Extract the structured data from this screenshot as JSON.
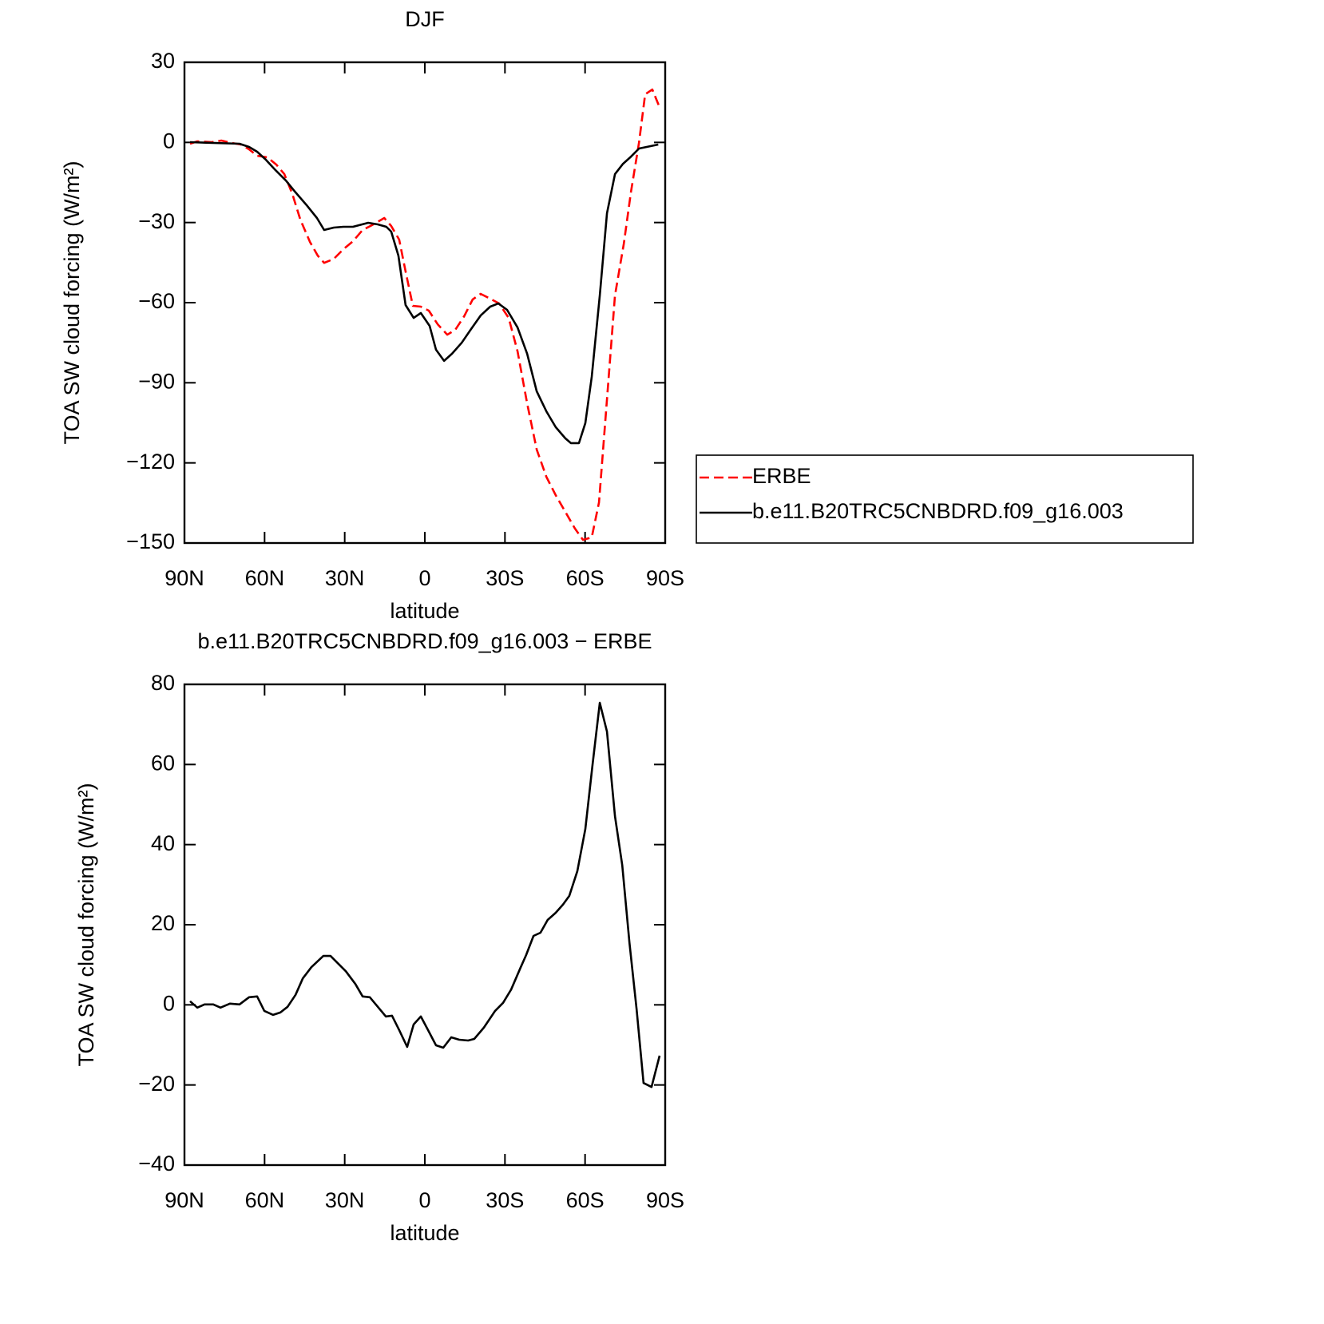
{
  "chart_data": [
    {
      "type": "line",
      "title": "DJF",
      "xlabel": "latitude",
      "ylabel": "TOA SW cloud forcing (W/m²)",
      "xlim": [
        90,
        -90
      ],
      "ylim": [
        -150,
        30
      ],
      "xticks": [
        {
          "value": 90,
          "label": "90N"
        },
        {
          "value": 60,
          "label": "60N"
        },
        {
          "value": 30,
          "label": "30N"
        },
        0,
        {
          "value": -30,
          "label": "30S"
        },
        {
          "value": -60,
          "label": "60S"
        },
        {
          "value": -90,
          "label": "90S"
        }
      ],
      "yticks": [
        30,
        0,
        {
          "value": -30,
          "label": "−30"
        },
        {
          "value": -60,
          "label": "−60"
        },
        {
          "value": -90,
          "label": "−90"
        },
        {
          "value": -120,
          "label": "−120"
        },
        {
          "value": -150,
          "label": "−150"
        }
      ],
      "legend": "right",
      "series": [
        {
          "name": "ERBE",
          "color": "#ff0000",
          "linestyle": "dashed",
          "x": [
            87.9,
            85.2,
            79.8,
            76.2,
            72.4,
            68.8,
            65.8,
            62.8,
            58.9,
            55.6,
            52.6,
            49.6,
            46.6,
            43.0,
            40.1,
            37.7,
            34.1,
            30.5,
            26.9,
            23.3,
            19.8,
            15.2,
            12.6,
            9.6,
            7.2,
            4.5,
            1.5,
            -1.5,
            -4.8,
            -8.4,
            -11.4,
            -14.7,
            -17.9,
            -20.9,
            -23.9,
            -27.8,
            -31.4,
            -34.7,
            -38.3,
            -41.9,
            -45.5,
            -49.0,
            -52.6,
            -56.2,
            -59.2,
            -62.5,
            -65.2,
            -68.2,
            -71.2,
            -74.5,
            -77.2,
            -80.2,
            -82.5,
            -85.2,
            -88.2
          ],
          "values": [
            -0.5,
            0.4,
            0.1,
            0.7,
            -0.2,
            -0.8,
            -2.6,
            -5.0,
            -5.6,
            -8.3,
            -11.9,
            -19.3,
            -28.9,
            -37.3,
            -42.4,
            -45.1,
            -43.6,
            -40.0,
            -37.0,
            -32.8,
            -31.0,
            -28.3,
            -31.3,
            -36.4,
            -48.3,
            -61.2,
            -61.5,
            -63.0,
            -68.1,
            -72.0,
            -70.2,
            -65.1,
            -58.8,
            -56.7,
            -58.2,
            -60.3,
            -65.7,
            -78.2,
            -97.7,
            -115.0,
            -125.2,
            -132.1,
            -138.3,
            -144.6,
            -148.8,
            -147.9,
            -134.8,
            -96.2,
            -57.3,
            -37.9,
            -18.4,
            -0.1,
            18.0,
            19.8,
            12.4
          ]
        },
        {
          "name": "b.e11.B20TRC5CNBDRD.f09_g16.003",
          "color": "#000000",
          "linestyle": "solid",
          "x": [
            87.9,
            69.4,
            65.8,
            62.8,
            59.5,
            55.9,
            52.0,
            48.4,
            44.0,
            40.4,
            37.7,
            34.1,
            30.5,
            26.9,
            21.2,
            17.6,
            14.4,
            12.6,
            9.9,
            7.2,
            4.2,
            1.5,
            -1.8,
            -4.2,
            -7.2,
            -10.2,
            -13.8,
            -17.3,
            -20.9,
            -24.5,
            -27.5,
            -30.8,
            -34.7,
            -38.3,
            -41.9,
            -45.5,
            -49.0,
            -52.6,
            -54.7,
            -57.7,
            -60.1,
            -62.5,
            -65.5,
            -68.2,
            -71.2,
            -74.2,
            -77.2,
            -80.2,
            -87.4
          ],
          "values": [
            0.1,
            -0.5,
            -1.7,
            -3.5,
            -6.5,
            -10.4,
            -14.3,
            -18.7,
            -23.8,
            -28.3,
            -32.8,
            -31.9,
            -31.6,
            -31.6,
            -30.1,
            -30.7,
            -31.6,
            -33.4,
            -42.4,
            -60.9,
            -65.7,
            -63.9,
            -68.7,
            -77.6,
            -81.8,
            -79.1,
            -75.0,
            -69.9,
            -64.8,
            -61.5,
            -60.3,
            -62.7,
            -69.3,
            -79.1,
            -93.2,
            -100.7,
            -106.6,
            -110.8,
            -112.6,
            -112.6,
            -105.1,
            -87.8,
            -57.3,
            -26.5,
            -11.9,
            -8.0,
            -5.3,
            -2.3,
            -0.8
          ]
        }
      ]
    },
    {
      "type": "line",
      "title": "b.e11.B20TRC5CNBDRD.f09_g16.003 − ERBE",
      "xlabel": "latitude",
      "ylabel": "TOA SW cloud forcing (W/m²)",
      "xlim": [
        90,
        -90
      ],
      "ylim": [
        -40,
        80
      ],
      "xticks": [
        {
          "value": 90,
          "label": "90N"
        },
        {
          "value": 60,
          "label": "60N"
        },
        {
          "value": 30,
          "label": "30N"
        },
        0,
        {
          "value": -30,
          "label": "30S"
        },
        {
          "value": -60,
          "label": "60S"
        },
        {
          "value": -90,
          "label": "90S"
        }
      ],
      "yticks": [
        80,
        60,
        40,
        20,
        0,
        {
          "value": -20,
          "label": "−20"
        },
        {
          "value": -40,
          "label": "−40"
        }
      ],
      "series": [
        {
          "color": "#000000",
          "linestyle": "solid",
          "x": [
            87.9,
            85.2,
            82.5,
            79.2,
            76.5,
            73.0,
            69.4,
            65.8,
            62.8,
            60.1,
            56.8,
            54.1,
            51.4,
            48.4,
            45.7,
            42.5,
            38.0,
            35.3,
            29.6,
            26.0,
            23.3,
            20.6,
            14.6,
            12.3,
            9.6,
            6.6,
            4.2,
            1.5,
            -1.2,
            -4.2,
            -6.9,
            -9.9,
            -12.9,
            -16.2,
            -18.5,
            -22.1,
            -26.3,
            -29.3,
            -32.3,
            -35.9,
            -37.9,
            -40.7,
            -43.3,
            -46.0,
            -49.0,
            -51.7,
            -54.1,
            -57.1,
            -60.1,
            -62.8,
            -65.5,
            -68.2,
            -71.2,
            -73.9,
            -76.6,
            -79.3,
            -81.9,
            -84.9,
            -87.9
          ],
          "values": [
            0.9,
            -0.7,
            0.1,
            0.1,
            -0.7,
            0.3,
            0.1,
            1.9,
            2.1,
            -1.5,
            -2.5,
            -1.9,
            -0.5,
            2.5,
            6.6,
            9.4,
            12.2,
            12.2,
            8.4,
            5.2,
            2.1,
            1.9,
            -2.9,
            -2.7,
            -6.3,
            -10.5,
            -4.9,
            -2.9,
            -6.3,
            -10.1,
            -10.7,
            -8.1,
            -8.7,
            -8.9,
            -8.5,
            -5.7,
            -1.5,
            0.5,
            3.8,
            9.4,
            12.4,
            17.2,
            18.0,
            21.2,
            23.0,
            25.0,
            27.2,
            33.4,
            43.9,
            59.9,
            75.4,
            68.2,
            47.1,
            34.9,
            15.6,
            -1.1,
            -19.5,
            -20.5,
            -12.7
          ]
        }
      ]
    }
  ]
}
